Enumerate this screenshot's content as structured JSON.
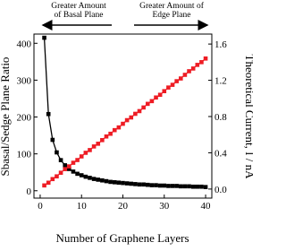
{
  "chart_data": {
    "type": "line",
    "x_label": "Number of Graphene Layers",
    "y_label": "Sbasal/Sedge Plane Ratio",
    "y2_label": "Theoretical Current, I / nA",
    "annotations": [
      [
        "Greater Amount",
        "of Basal Plane"
      ],
      [
        "Greater Amount of",
        "Edge Plane"
      ]
    ],
    "x": [
      1,
      2,
      3,
      4,
      5,
      6,
      7,
      8,
      9,
      10,
      11,
      12,
      13,
      14,
      15,
      16,
      17,
      18,
      19,
      20,
      21,
      22,
      23,
      24,
      25,
      26,
      27,
      28,
      29,
      30,
      31,
      32,
      33,
      34,
      35,
      36,
      37,
      38,
      39,
      40
    ],
    "series": [
      {
        "name": "Sbasal/Sedge Plane Ratio",
        "color": "#000000",
        "axis": "y",
        "values": [
          415,
          208,
          138,
          104,
          83,
          69,
          59,
          52,
          46,
          42,
          38,
          35,
          32,
          30,
          28,
          26,
          24,
          23,
          22,
          21,
          20,
          19,
          18,
          17,
          17,
          16,
          15,
          15,
          14,
          14,
          13,
          13,
          13,
          12,
          12,
          12,
          11,
          11,
          11,
          10
        ]
      },
      {
        "name": "Theoretical Current",
        "color": "#ee1c24",
        "axis": "y2",
        "values": [
          0.04,
          0.07,
          0.11,
          0.14,
          0.18,
          0.22,
          0.25,
          0.29,
          0.32,
          0.36,
          0.4,
          0.43,
          0.47,
          0.5,
          0.54,
          0.58,
          0.61,
          0.65,
          0.68,
          0.72,
          0.76,
          0.79,
          0.83,
          0.86,
          0.9,
          0.94,
          0.97,
          1.01,
          1.04,
          1.08,
          1.12,
          1.15,
          1.19,
          1.22,
          1.26,
          1.3,
          1.33,
          1.37,
          1.4,
          1.44
        ]
      }
    ],
    "xlim": [
      -1.5,
      41.5
    ],
    "xticks": [
      0,
      10,
      20,
      30,
      40
    ],
    "ylim": [
      -20,
      425
    ],
    "yticks": [
      0,
      100,
      200,
      300,
      400
    ],
    "y2lim": [
      -0.1,
      1.71
    ],
    "y2ticks": [
      {
        "value": 0,
        "label": "0.0"
      },
      0.4,
      0.8,
      1.2,
      1.6
    ],
    "grid": false
  }
}
